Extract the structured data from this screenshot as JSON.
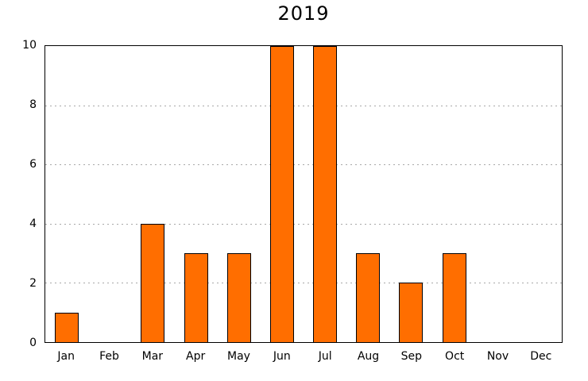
{
  "title": "2019",
  "colors": {
    "bar_fill": "#ff6e00",
    "bar_outline": "#000000",
    "grid": "#a8a8a8",
    "axis": "#000000",
    "background": "#ffffff",
    "text": "#000000"
  },
  "chart_data": {
    "type": "bar",
    "title": "2019",
    "categories": [
      "Jan",
      "Feb",
      "Mar",
      "Apr",
      "May",
      "Jun",
      "Jul",
      "Aug",
      "Sep",
      "Oct",
      "Nov",
      "Dec"
    ],
    "values": [
      1,
      0,
      4,
      3,
      3,
      10,
      10,
      3,
      2,
      3,
      0,
      0
    ],
    "xlabel": "",
    "ylabel": "",
    "ylim": [
      0,
      10
    ],
    "yticks": [
      0,
      2,
      4,
      6,
      8,
      10
    ],
    "grid": "horizontal-dotted",
    "legend": "none",
    "bar_color": "#ff6e00"
  }
}
